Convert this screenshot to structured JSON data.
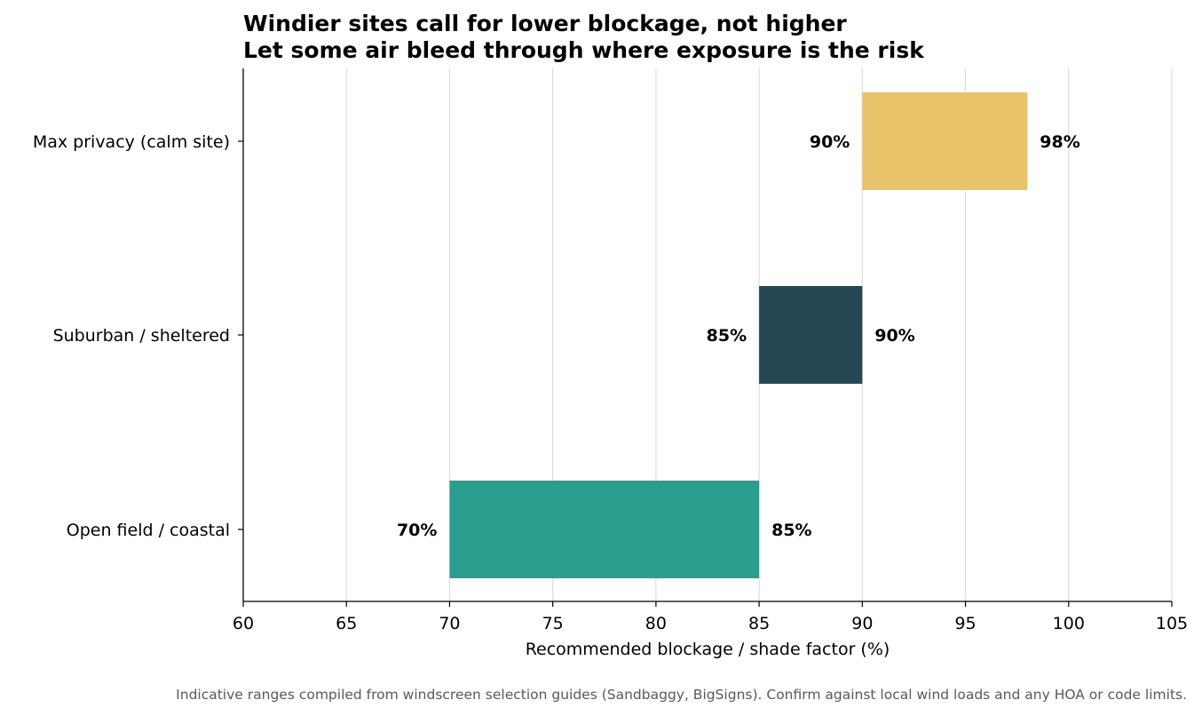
{
  "chart_data": {
    "type": "bar",
    "orientation": "horizontal",
    "subtype": "floating-range",
    "title_lines": [
      "Windier sites call for lower blockage, not higher",
      "Let some air bleed through where exposure is the risk"
    ],
    "xlabel": "Recommended blockage / shade factor (%)",
    "ylabel": "",
    "xlim": [
      60,
      105
    ],
    "x_ticks": [
      60,
      65,
      70,
      75,
      80,
      85,
      90,
      95,
      100,
      105
    ],
    "grid": "vertical",
    "categories": [
      "Max privacy (calm site)",
      "Suburban / sheltered",
      "Open field / coastal"
    ],
    "ranges": [
      {
        "category": "Max privacy (calm site)",
        "start": 90,
        "end": 98,
        "start_label": "90%",
        "end_label": "98%",
        "color": "#e8c36a"
      },
      {
        "category": "Suburban / sheltered",
        "start": 85,
        "end": 90,
        "start_label": "85%",
        "end_label": "90%",
        "color": "#264653"
      },
      {
        "category": "Open field / coastal",
        "start": 70,
        "end": 85,
        "start_label": "70%",
        "end_label": "85%",
        "color": "#2a9d8f"
      }
    ],
    "footnote": "Indicative ranges compiled from windscreen selection guides (Sandbaggy, BigSigns). Confirm against local wind loads and any HOA or code limits."
  }
}
